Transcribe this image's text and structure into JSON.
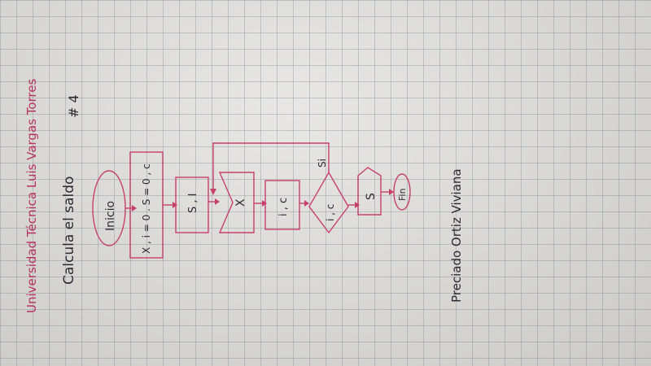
{
  "header": {
    "university": "Universidad Técnica Luis Vargas Torres",
    "title": "Calcula el saldo",
    "number": "# 4"
  },
  "flowchart": {
    "start": "Inicio",
    "init": "X , i = 0 . S = 0 , c",
    "box1": "S , I",
    "input": "X",
    "box2": "i , c",
    "decision": "i , c",
    "yes_label": "Si",
    "output": "S",
    "end": "Fin"
  },
  "author": "Preciado Ortiz Viviana",
  "colors": {
    "ink_pink": "#c7406b",
    "ink_dark": "#2c2a30"
  }
}
